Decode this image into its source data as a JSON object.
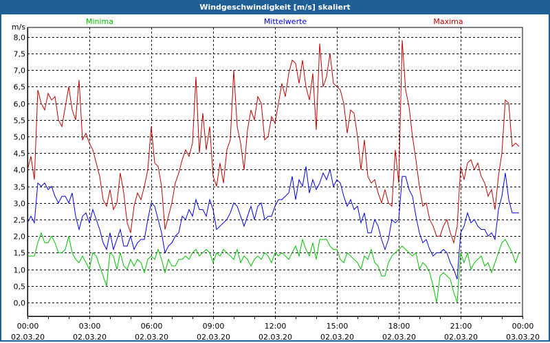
{
  "title": "Windgeschwindigkeit [m/s] skaliert",
  "chart_data": {
    "type": "line",
    "title": "Windgeschwindigkeit [m/s] skaliert",
    "ylabel": "m/s",
    "xlabel": "",
    "ylim": [
      -0.4,
      8.4
    ],
    "yticks": [
      "8,0",
      "7,5",
      "7,0",
      "6,5",
      "6,0",
      "5,5",
      "5,0",
      "4,5",
      "4,0",
      "3,5",
      "3,0",
      "2,5",
      "2,0",
      "1,5",
      "1,0",
      "0,5",
      "0,0"
    ],
    "ytick_values": [
      8,
      7.5,
      7,
      6.5,
      6,
      5.5,
      5,
      4.5,
      4,
      3.5,
      3,
      2.5,
      2,
      1.5,
      1,
      0.5,
      0
    ],
    "xlim_hours": [
      0,
      24
    ],
    "x_step_minutes": 10,
    "xticks": [
      {
        "time": "00:00",
        "date": "02.03.20",
        "hour": 0
      },
      {
        "time": "03:00",
        "date": "02.03.20",
        "hour": 3
      },
      {
        "time": "06:00",
        "date": "02.03.20",
        "hour": 6
      },
      {
        "time": "09:00",
        "date": "02.03.20",
        "hour": 9
      },
      {
        "time": "12:00",
        "date": "02.03.20",
        "hour": 12
      },
      {
        "time": "15:00",
        "date": "02.03.20",
        "hour": 15
      },
      {
        "time": "18:00",
        "date": "02.03.20",
        "hour": 18
      },
      {
        "time": "21:00",
        "date": "02.03.20",
        "hour": 21
      },
      {
        "time": "00:00",
        "date": "03.03.20",
        "hour": 24
      }
    ],
    "grid": true,
    "legend_placement": "top",
    "series": [
      {
        "name": "Minima",
        "color": "#00c000",
        "values": [
          1.4,
          1.4,
          1.4,
          1.8,
          2.1,
          1.8,
          1.8,
          2.0,
          1.8,
          1.5,
          1.5,
          1.6,
          2.0,
          1.5,
          1.3,
          1.2,
          1.4,
          1.2,
          1.0,
          1.5,
          1.4,
          1.1,
          0.8,
          0.5,
          1.5,
          1.4,
          1.0,
          1.5,
          1.1,
          1.0,
          1.3,
          1.1,
          1.3,
          1.2,
          0.9,
          1.3,
          1.4,
          1.3,
          1.6,
          1.3,
          0.9,
          1.3,
          1.1,
          1.1,
          1.3,
          1.3,
          1.4,
          1.3,
          1.5,
          1.6,
          1.4,
          1.5,
          1.6,
          1.5,
          1.2,
          1.5,
          1.4,
          1.6,
          1.5,
          1.4,
          1.3,
          1.6,
          1.2,
          1.4,
          1.3,
          1.1,
          1.3,
          1.4,
          1.3,
          1.5,
          1.4,
          1.2,
          1.5,
          1.4,
          1.5,
          1.4,
          1.3,
          1.5,
          1.7,
          1.4,
          1.9,
          1.6,
          1.4,
          1.8,
          1.3,
          1.9,
          1.9,
          1.9,
          1.7,
          1.6,
          1.6,
          1.3,
          1.2,
          1.5,
          1.4,
          1.3,
          1.2,
          1.0,
          1.4,
          1.3,
          1.6,
          1.2,
          1.1,
          0.8,
          0.8,
          1.2,
          1.4,
          1.5,
          1.6,
          1.7,
          1.6,
          1.5,
          1.4,
          1.5,
          1.0,
          1.2,
          1.1,
          0.9,
          0.5,
          0.0,
          0.8,
          0.9,
          0.8,
          0.7,
          0.3,
          0.0,
          1.5,
          1.2,
          1.5,
          1.0,
          1.2,
          1.3,
          1.4,
          1.1,
          1.2,
          0.9,
          1.2,
          1.5,
          1.8,
          1.9,
          1.7,
          1.5,
          1.2,
          1.5
        ]
      },
      {
        "name": "Mittelwerte",
        "color": "#0000e0",
        "values": [
          2.4,
          2.6,
          2.4,
          3.6,
          3.5,
          3.6,
          3.4,
          3.5,
          3.2,
          3.0,
          3.2,
          3.2,
          3.0,
          3.3,
          2.6,
          2.2,
          2.6,
          2.7,
          2.4,
          2.8,
          2.5,
          2.2,
          1.8,
          1.6,
          2.1,
          1.6,
          1.9,
          2.2,
          1.7,
          1.7,
          2.0,
          1.6,
          1.8,
          1.9,
          1.9,
          2.5,
          3.0,
          2.9,
          2.5,
          2.1,
          1.5,
          1.7,
          1.8,
          2.0,
          2.1,
          2.6,
          2.5,
          2.8,
          2.6,
          3.1,
          2.8,
          2.8,
          2.6,
          3.1,
          2.8,
          2.2,
          2.3,
          2.4,
          2.5,
          2.7,
          3.0,
          2.9,
          2.6,
          2.3,
          2.6,
          2.9,
          2.5,
          2.9,
          3.0,
          2.5,
          2.6,
          2.6,
          2.9,
          3.1,
          3.1,
          3.2,
          3.3,
          3.8,
          3.1,
          3.7,
          3.5,
          4.1,
          3.3,
          3.7,
          3.4,
          3.6,
          3.9,
          3.7,
          4.0,
          3.5,
          3.7,
          3.6,
          3.2,
          2.9,
          3.1,
          2.8,
          2.9,
          2.4,
          2.7,
          2.1,
          2.1,
          2.5,
          2.3,
          1.9,
          1.6,
          1.9,
          2.5,
          2.4,
          2.5,
          3.8,
          3.8,
          3.4,
          3.2,
          2.6,
          2.1,
          1.8,
          1.9,
          1.6,
          1.4,
          1.5,
          1.5,
          1.6,
          1.5,
          1.2,
          1.0,
          0.7,
          2.1,
          2.3,
          2.7,
          2.4,
          2.5,
          2.3,
          2.2,
          2.2,
          2.0,
          2.1,
          1.9,
          2.8,
          3.2,
          3.9,
          3.1,
          2.7,
          2.7,
          2.7
        ]
      },
      {
        "name": "Maxima",
        "color": "#c00000",
        "values": [
          4.0,
          4.4,
          3.7,
          6.4,
          6.0,
          5.8,
          6.3,
          6.1,
          6.2,
          5.5,
          5.3,
          5.9,
          6.5,
          5.8,
          5.5,
          6.7,
          4.9,
          5.1,
          4.8,
          4.6,
          4.2,
          3.8,
          3.1,
          2.9,
          3.4,
          2.8,
          3.0,
          3.9,
          3.3,
          2.4,
          2.1,
          2.9,
          3.3,
          3.1,
          3.5,
          4.0,
          5.3,
          4.2,
          4.1,
          3.5,
          2.2,
          2.6,
          3.0,
          3.6,
          3.9,
          4.3,
          4.6,
          4.4,
          4.8,
          6.8,
          4.5,
          5.7,
          4.6,
          5.3,
          3.8,
          3.5,
          4.2,
          3.6,
          4.6,
          4.9,
          7.0,
          5.3,
          4.8,
          4.0,
          5.2,
          5.8,
          5.5,
          6.2,
          6.0,
          4.9,
          5.0,
          5.6,
          5.4,
          6.0,
          6.6,
          6.2,
          6.9,
          7.3,
          7.2,
          6.6,
          7.3,
          6.5,
          6.1,
          6.9,
          5.2,
          7.8,
          6.5,
          6.8,
          7.5,
          6.6,
          6.5,
          6.4,
          6.0,
          5.1,
          5.8,
          5.7,
          5.0,
          4.0,
          4.9,
          3.8,
          3.6,
          3.7,
          3.3,
          3.0,
          3.4,
          3.0,
          2.9,
          4.6,
          3.6,
          7.9,
          6.4,
          5.9,
          5.0,
          4.3,
          3.5,
          2.9,
          3.0,
          2.5,
          2.3,
          2.0,
          2.0,
          2.3,
          2.5,
          2.1,
          1.8,
          2.3,
          4.1,
          3.7,
          4.2,
          4.3,
          4.0,
          4.2,
          3.8,
          3.6,
          3.2,
          3.4,
          2.8,
          3.8,
          4.5,
          6.1,
          6.0,
          4.7,
          4.8,
          4.7
        ]
      }
    ]
  }
}
